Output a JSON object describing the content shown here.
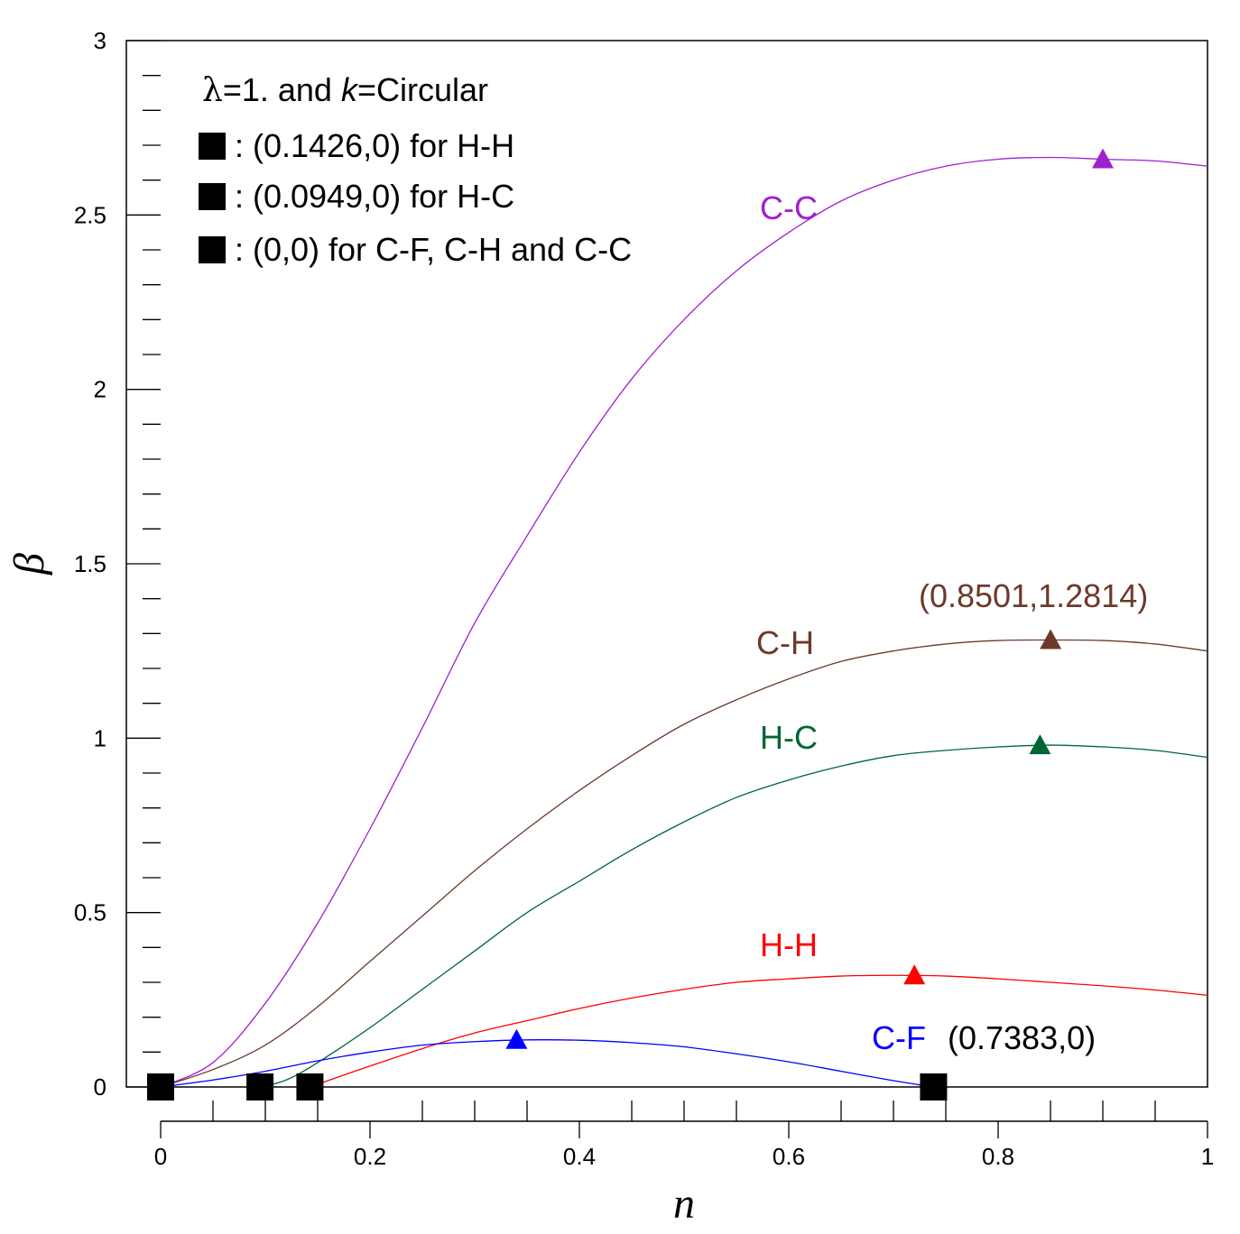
{
  "chart_data": {
    "type": "line",
    "xlabel": "n",
    "ylabel": "β",
    "xlim": [
      0,
      1
    ],
    "ylim": [
      0,
      3
    ],
    "xticks": [
      "0",
      "0.2",
      "0.4",
      "0.6",
      "0.8",
      "1"
    ],
    "yticks": [
      "0",
      "0.5",
      "1",
      "1.5",
      "2",
      "2.5",
      "3"
    ],
    "legend": {
      "title_lambda": "λ",
      "title_eq": "=1. and ",
      "title_k": "k",
      "title_rest": "=Circular",
      "entries": [
        ": (0.1426,0) for H-H",
        ": (0.0949,0) for H-C",
        ": (0,0) for C-F, C-H and C-C"
      ]
    },
    "series": [
      {
        "name": "C-C",
        "color": "#a020d0",
        "label": "C-C",
        "peak": [
          0.9,
          2.66
        ],
        "x": [
          0,
          0.05,
          0.1,
          0.15,
          0.2,
          0.25,
          0.3,
          0.35,
          0.4,
          0.45,
          0.5,
          0.55,
          0.6,
          0.65,
          0.7,
          0.75,
          0.8,
          0.85,
          0.9,
          0.95,
          1.0
        ],
        "y": [
          0,
          0.07,
          0.24,
          0.47,
          0.74,
          1.03,
          1.33,
          1.58,
          1.82,
          2.03,
          2.2,
          2.34,
          2.45,
          2.54,
          2.6,
          2.64,
          2.66,
          2.665,
          2.66,
          2.655,
          2.64
        ]
      },
      {
        "name": "C-H",
        "color": "#6b3a2a",
        "label": "C-H",
        "peak": [
          0.8501,
          1.2814
        ],
        "annotation": "(0.8501,1.2814)",
        "x": [
          0,
          0.05,
          0.1,
          0.15,
          0.2,
          0.25,
          0.3,
          0.35,
          0.4,
          0.45,
          0.5,
          0.55,
          0.6,
          0.65,
          0.7,
          0.75,
          0.8,
          0.85,
          0.9,
          0.95,
          1.0
        ],
        "y": [
          0,
          0.05,
          0.12,
          0.23,
          0.36,
          0.49,
          0.62,
          0.74,
          0.85,
          0.95,
          1.04,
          1.11,
          1.17,
          1.22,
          1.25,
          1.27,
          1.28,
          1.2814,
          1.28,
          1.27,
          1.25
        ]
      },
      {
        "name": "H-C",
        "color": "#006633",
        "label": "H-C",
        "peak": [
          0.84,
          0.98
        ],
        "x": [
          0.0949,
          0.12,
          0.15,
          0.2,
          0.25,
          0.3,
          0.35,
          0.4,
          0.45,
          0.5,
          0.55,
          0.6,
          0.65,
          0.7,
          0.75,
          0.8,
          0.85,
          0.9,
          0.95,
          1.0
        ],
        "y": [
          0,
          0.02,
          0.07,
          0.17,
          0.28,
          0.39,
          0.5,
          0.59,
          0.68,
          0.76,
          0.83,
          0.88,
          0.92,
          0.95,
          0.965,
          0.975,
          0.98,
          0.975,
          0.965,
          0.945
        ]
      },
      {
        "name": "H-H",
        "color": "#ff0000",
        "label": "H-H",
        "peak": [
          0.72,
          0.32
        ],
        "x": [
          0.1426,
          0.2,
          0.25,
          0.3,
          0.35,
          0.4,
          0.45,
          0.5,
          0.55,
          0.6,
          0.65,
          0.7,
          0.75,
          0.8,
          0.85,
          0.9,
          0.95,
          1.0
        ],
        "y": [
          0,
          0.06,
          0.11,
          0.155,
          0.19,
          0.225,
          0.255,
          0.28,
          0.3,
          0.31,
          0.318,
          0.32,
          0.318,
          0.31,
          0.3,
          0.29,
          0.278,
          0.263
        ]
      },
      {
        "name": "C-F",
        "color": "#0000ff",
        "label": "C-F",
        "peak": [
          0.34,
          0.135
        ],
        "annotation": "(0.7383,0)",
        "x": [
          0,
          0.05,
          0.1,
          0.15,
          0.2,
          0.25,
          0.3,
          0.35,
          0.4,
          0.45,
          0.5,
          0.55,
          0.6,
          0.65,
          0.7,
          0.7383
        ],
        "y": [
          0,
          0.02,
          0.045,
          0.075,
          0.1,
          0.12,
          0.13,
          0.135,
          0.134,
          0.127,
          0.115,
          0.095,
          0.072,
          0.045,
          0.018,
          0
        ]
      }
    ],
    "zero_markers": [
      0,
      0.0949,
      0.1426,
      0.7383
    ]
  }
}
